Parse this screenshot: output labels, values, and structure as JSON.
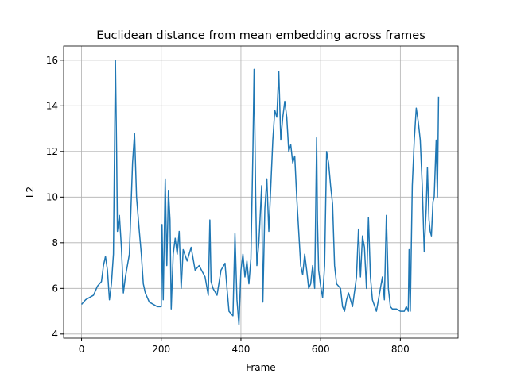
{
  "chart_data": {
    "type": "line",
    "title": "Euclidean distance from mean embedding across frames",
    "xlabel": "Frame",
    "ylabel": "L2",
    "x": [
      0,
      10,
      20,
      30,
      40,
      50,
      55,
      60,
      65,
      70,
      75,
      80,
      85,
      88,
      90,
      95,
      100,
      105,
      110,
      120,
      128,
      133,
      138,
      145,
      150,
      155,
      160,
      170,
      180,
      190,
      200,
      202,
      205,
      210,
      214,
      218,
      222,
      225,
      230,
      235,
      240,
      245,
      250,
      255,
      265,
      275,
      285,
      295,
      310,
      318,
      322,
      325,
      330,
      340,
      350,
      360,
      365,
      370,
      380,
      385,
      390,
      395,
      400,
      405,
      410,
      415,
      420,
      425,
      430,
      433,
      437,
      440,
      445,
      452,
      455,
      460,
      465,
      470,
      475,
      480,
      485,
      490,
      495,
      500,
      505,
      510,
      515,
      520,
      525,
      530,
      535,
      540,
      545,
      550,
      555,
      560,
      565,
      570,
      575,
      580,
      585,
      590,
      592,
      595,
      600,
      605,
      610,
      615,
      620,
      625,
      630,
      635,
      640,
      650,
      655,
      660,
      665,
      670,
      680,
      690,
      695,
      700,
      705,
      710,
      715,
      720,
      725,
      730,
      740,
      745,
      750,
      755,
      760,
      765,
      770,
      775,
      780,
      790,
      800,
      810,
      815,
      820,
      822,
      825,
      830,
      835,
      840,
      845,
      850,
      855,
      860,
      865,
      868,
      872,
      875,
      878,
      882,
      885,
      890,
      893,
      896
    ],
    "series": [
      {
        "name": "L2",
        "color": "#1f77b4",
        "values": [
          5.3,
          5.5,
          5.6,
          5.7,
          6.1,
          6.3,
          7.0,
          7.4,
          6.8,
          5.5,
          6.2,
          7.5,
          16.0,
          12,
          8.5,
          9.2,
          7.8,
          5.8,
          6.5,
          7.5,
          11.5,
          12.8,
          10,
          8.5,
          7.5,
          6.2,
          5.8,
          5.4,
          5.3,
          5.2,
          5.2,
          8.8,
          5.5,
          10.8,
          7,
          10.3,
          9,
          5.1,
          7.5,
          8.2,
          7.5,
          8.5,
          6.0,
          7.7,
          7.2,
          7.8,
          6.8,
          7.0,
          6.5,
          5.7,
          9.0,
          6.3,
          6.0,
          5.7,
          6.8,
          7.1,
          6.0,
          5.0,
          4.8,
          8.4,
          5.5,
          4.4,
          6.8,
          7.5,
          6.5,
          7.2,
          6.2,
          7.3,
          12,
          15.6,
          10,
          7.0,
          8.0,
          10.5,
          5.4,
          9.5,
          10.8,
          8.5,
          10.5,
          12.5,
          13.8,
          13.5,
          15.5,
          12.5,
          13.5,
          14.2,
          13.5,
          12.0,
          12.3,
          11.5,
          11.8,
          10.0,
          8.5,
          7.0,
          6.6,
          7.5,
          6.8,
          6.0,
          6.2,
          7.0,
          6.0,
          12.6,
          9,
          6.8,
          6.1,
          5.6,
          7.0,
          12.0,
          11.5,
          10.5,
          9.7,
          7.0,
          6.2,
          6.0,
          5.2,
          5.0,
          5.5,
          5.8,
          5.2,
          6.5,
          8.6,
          6.5,
          8.3,
          7.8,
          6.0,
          9.1,
          6.5,
          5.5,
          5.0,
          5.5,
          6.0,
          6.5,
          5.5,
          9.2,
          6.0,
          5.2,
          5.1,
          5.1,
          5.0,
          5.0,
          5.2,
          5.0,
          7.7,
          5.0,
          10.5,
          12.5,
          13.9,
          13.3,
          12.5,
          10.5,
          7.6,
          9.5,
          11.3,
          9.0,
          8.5,
          8.3,
          9.8,
          10.0,
          12.5,
          10,
          14.4
        ]
      }
    ],
    "xlim": [
      -45,
      945
    ],
    "ylim": [
      3.82,
      16.62
    ],
    "xticks": [
      0,
      200,
      400,
      600,
      800
    ],
    "yticks": [
      4,
      6,
      8,
      10,
      12,
      14,
      16
    ],
    "grid": true
  }
}
